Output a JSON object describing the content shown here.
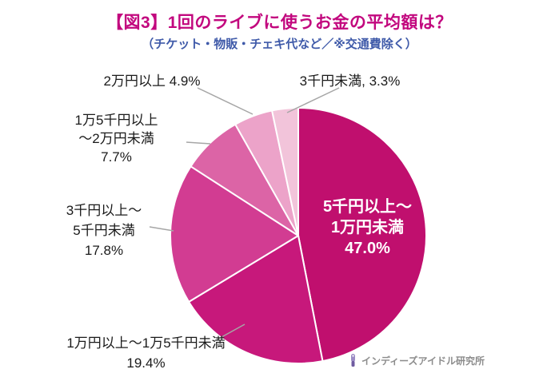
{
  "header": {
    "title": "【図3】1回のライブに使うお金の平均額は？",
    "subtitle": "（チケット・物販・チェキ代など／※交通費除く）"
  },
  "chart_data": {
    "type": "pie",
    "title": "1回のライブに使うお金の平均額",
    "unit": "%",
    "start_angle_deg_from_top_clockwise": 0,
    "legend": "none",
    "slices": [
      {
        "label": "5千円以上～1万円未満",
        "value": 47.0,
        "color": "#C00F6E",
        "label_position": "inside"
      },
      {
        "label": "1万円以上～1万5千円未満",
        "value": 19.4,
        "color": "#C7187B",
        "label_position": "outside"
      },
      {
        "label": "3千円以上～5千円未満",
        "value": 17.8,
        "color": "#D23C92",
        "label_position": "outside"
      },
      {
        "label": "1万5千円以上～2万円未満",
        "value": 7.7,
        "color": "#DC64A6",
        "label_position": "outside"
      },
      {
        "label": "2万円以上",
        "value": 4.9,
        "color": "#ECA3C9",
        "label_position": "outside"
      },
      {
        "label": "3千円未満",
        "value": 3.3,
        "color": "#F2C4DA",
        "label_position": "outside"
      }
    ]
  },
  "labels": {
    "inside": [
      "5千円以上～",
      "1万円未満",
      "47.0%"
    ],
    "man2": "2万円以上 4.9%",
    "sen3miman": "3千円未満, 3.3%",
    "man15k": [
      "1万5千円以上",
      "～2万円未満",
      "7.7%"
    ],
    "sen3up": [
      "3千円以上～",
      "5千円未満",
      "17.8%"
    ],
    "man1": [
      "1万円以上～1万5千円未満",
      "19.4%"
    ]
  },
  "footer": {
    "source": "インディーズアイドル研究所",
    "icon": "penlight-icon",
    "icon_color": "#7E6BAE"
  },
  "colors": {
    "title": "#C2077E",
    "subtitle": "#3F5AA9",
    "leader_line": "#A6A6A6",
    "label_text": "#1a1a1a"
  }
}
